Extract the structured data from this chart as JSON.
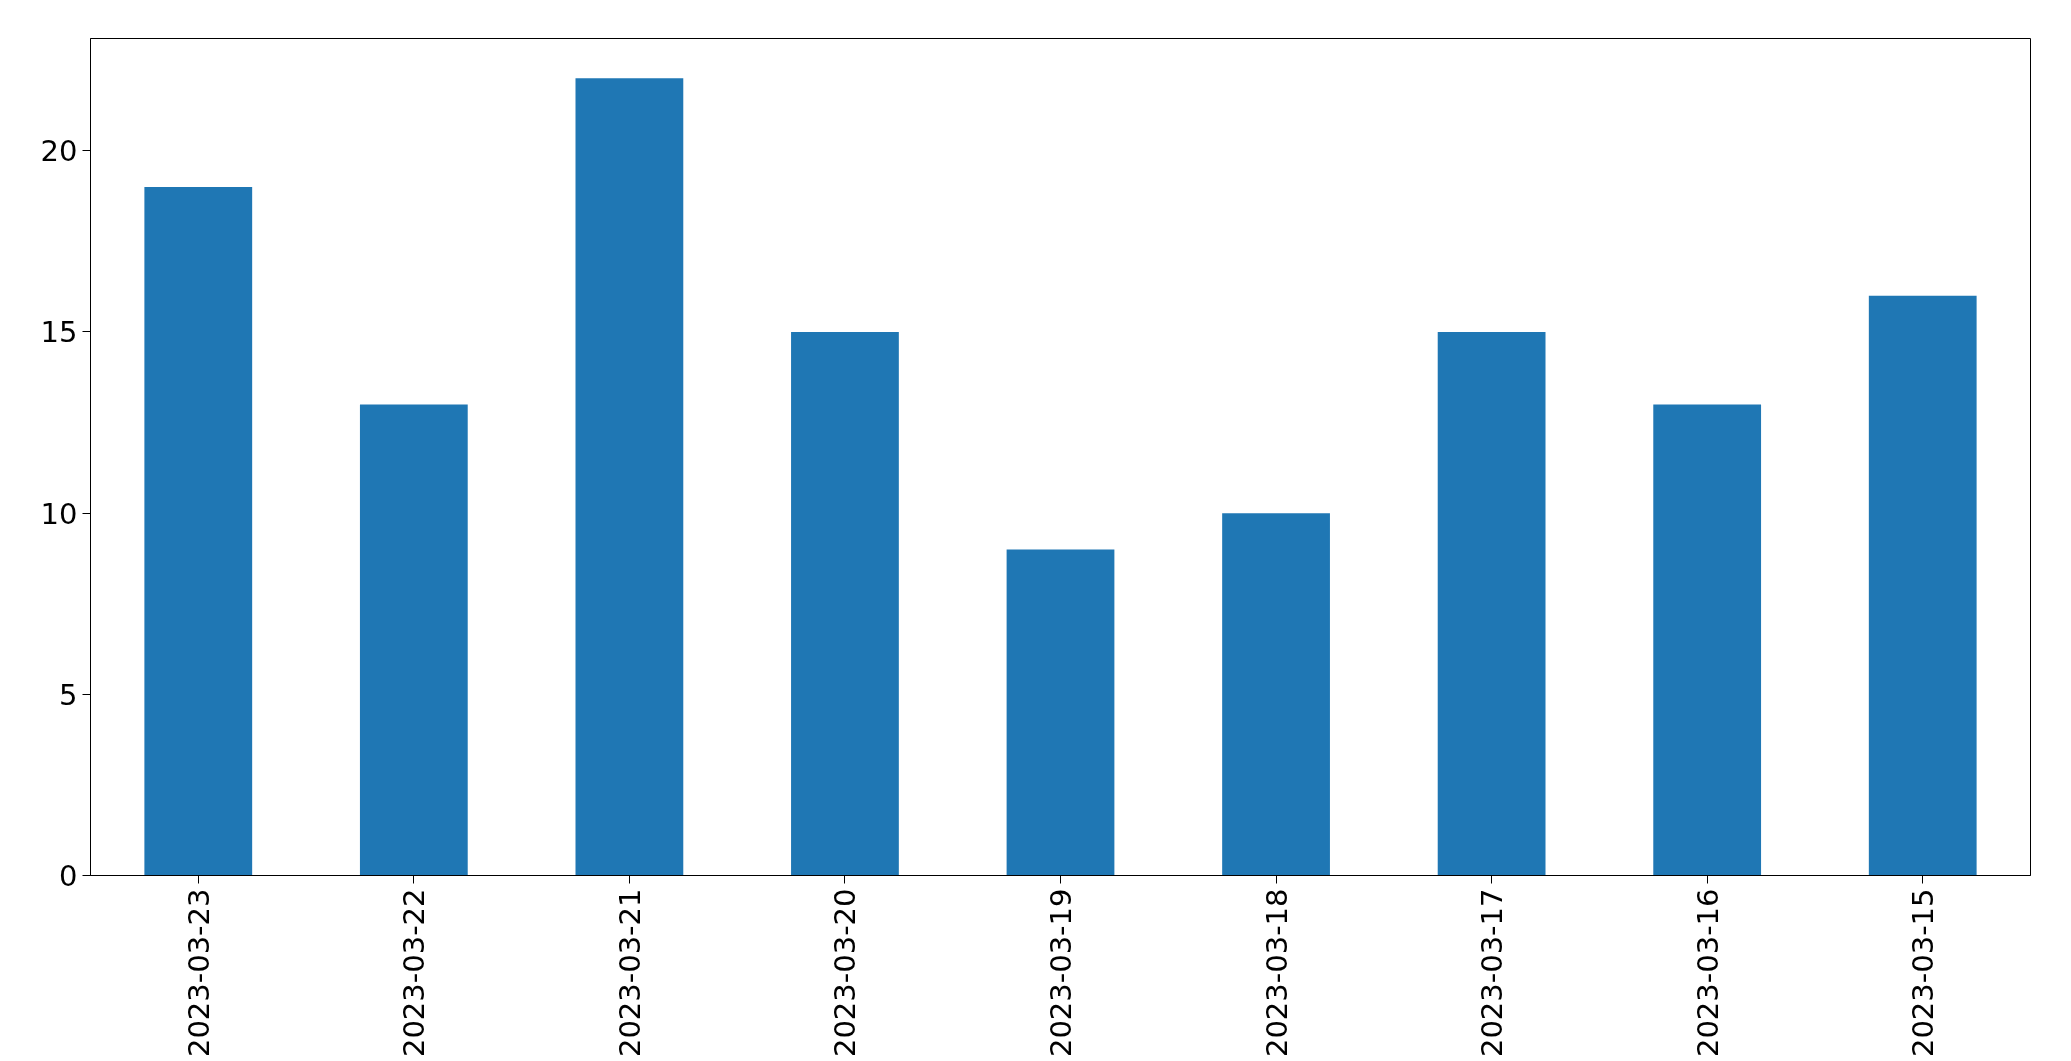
{
  "chart_data": {
    "type": "bar",
    "categories": [
      "2023-03-23",
      "2023-03-22",
      "2023-03-21",
      "2023-03-20",
      "2023-03-19",
      "2023-03-18",
      "2023-03-17",
      "2023-03-16",
      "2023-03-15"
    ],
    "values": [
      19,
      13,
      22,
      15,
      9,
      10,
      15,
      13,
      16
    ],
    "color": "#1f77b4",
    "ylim": [
      0,
      23.1
    ],
    "yticks": [
      0,
      5,
      10,
      15,
      20
    ],
    "grid": false
  }
}
